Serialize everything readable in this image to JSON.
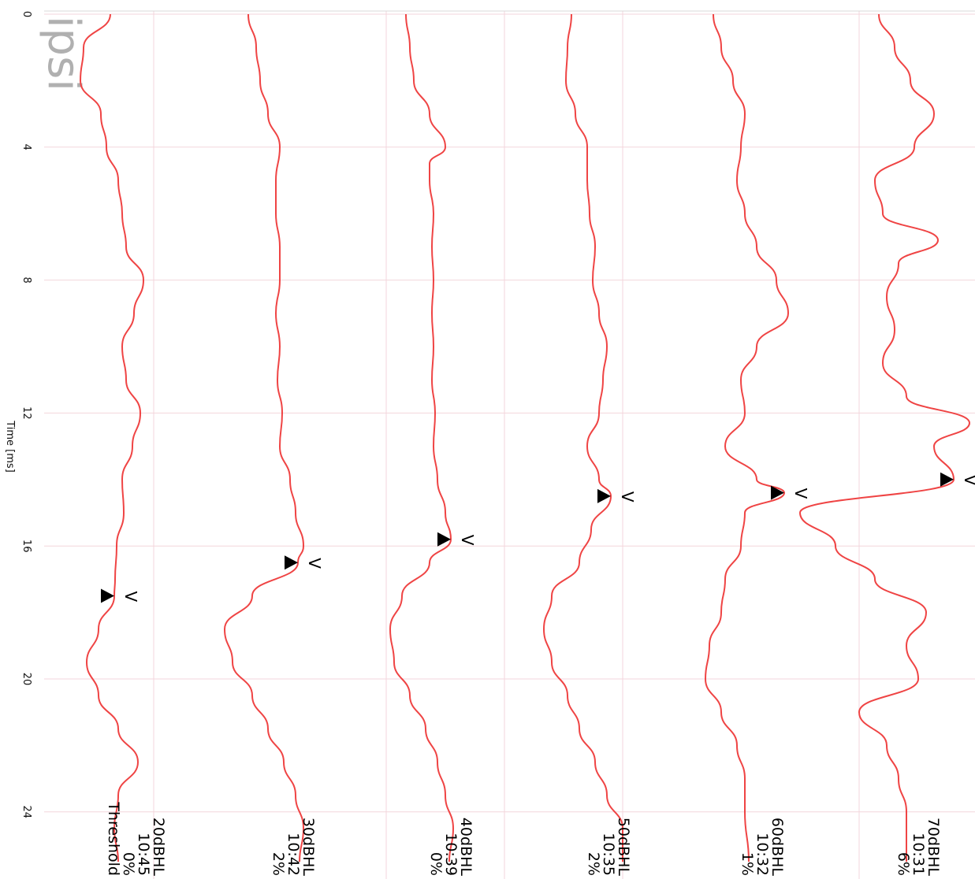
{
  "view": {
    "side_label": "ipsi",
    "axis_label": "Time [ms]",
    "ticks": [
      "0",
      "4",
      "8",
      "12",
      "16",
      "20",
      "24"
    ],
    "trace_color": "#ef4444",
    "grid_color": "#f3d6dc",
    "marker_color": "#000000"
  },
  "chart_data": {
    "type": "line",
    "title": "",
    "xlabel": "Time [ms]",
    "ylabel": "",
    "xlim": [
      0,
      25.5
    ],
    "xticks": [
      0,
      4,
      8,
      12,
      16,
      20,
      24
    ],
    "grid": true,
    "series": [
      {
        "level": "20dBHL",
        "time": "10:45",
        "percent": "0%",
        "note": "Threshold",
        "wave_v_ms": 17.5,
        "wave_v_label": "V",
        "points": [
          [
            0,
            140
          ],
          [
            1,
            106
          ],
          [
            2,
            102
          ],
          [
            3,
            128
          ],
          [
            4,
            135
          ],
          [
            5,
            150
          ],
          [
            6,
            155
          ],
          [
            7,
            160
          ],
          [
            8,
            182
          ],
          [
            9,
            170
          ],
          [
            10,
            155
          ],
          [
            11,
            160
          ],
          [
            12,
            178
          ],
          [
            13,
            168
          ],
          [
            14,
            155
          ],
          [
            15,
            157
          ],
          [
            16,
            148
          ],
          [
            17,
            146
          ],
          [
            17.5,
            145
          ],
          [
            18.5,
            125
          ],
          [
            19.5,
            110
          ],
          [
            20.5,
            125
          ],
          [
            21.5,
            150
          ],
          [
            22.5,
            175
          ],
          [
            23.5,
            150
          ],
          [
            24.5,
            145
          ],
          [
            25.5,
            150
          ]
        ]
      },
      {
        "level": "30dBHL",
        "time": "10:42",
        "percent": "2%",
        "note": "",
        "wave_v_ms": 16.5,
        "wave_v_label": "V",
        "points": [
          [
            0,
            315
          ],
          [
            1,
            325
          ],
          [
            2,
            330
          ],
          [
            3,
            340
          ],
          [
            4,
            355
          ],
          [
            5,
            350
          ],
          [
            6,
            350
          ],
          [
            7,
            355
          ],
          [
            8,
            355
          ],
          [
            9,
            350
          ],
          [
            10,
            355
          ],
          [
            11,
            352
          ],
          [
            12,
            358
          ],
          [
            13,
            355
          ],
          [
            14,
            368
          ],
          [
            15,
            375
          ],
          [
            16,
            385
          ],
          [
            16.5,
            378
          ],
          [
            17.5,
            320
          ],
          [
            18.5,
            285
          ],
          [
            19.5,
            295
          ],
          [
            20.5,
            320
          ],
          [
            21.5,
            340
          ],
          [
            22.5,
            360
          ],
          [
            23.5,
            375
          ],
          [
            24.5,
            385
          ],
          [
            25.5,
            380
          ]
        ]
      },
      {
        "level": "40dBHL",
        "time": "10:39",
        "percent": "0%",
        "note": "",
        "wave_v_ms": 15.8,
        "wave_v_label": "V",
        "points": [
          [
            0,
            515
          ],
          [
            1,
            520
          ],
          [
            2,
            525
          ],
          [
            3,
            545
          ],
          [
            4,
            565
          ],
          [
            4.5,
            545
          ],
          [
            5,
            545
          ],
          [
            6,
            550
          ],
          [
            7,
            548
          ],
          [
            8,
            550
          ],
          [
            9,
            548
          ],
          [
            10,
            550
          ],
          [
            11,
            548
          ],
          [
            12,
            552
          ],
          [
            13,
            550
          ],
          [
            14,
            555
          ],
          [
            15,
            565
          ],
          [
            15.8,
            572
          ],
          [
            16.5,
            545
          ],
          [
            17.5,
            510
          ],
          [
            18.5,
            495
          ],
          [
            19.5,
            500
          ],
          [
            20.5,
            520
          ],
          [
            21.5,
            540
          ],
          [
            22.5,
            555
          ],
          [
            23.5,
            565
          ],
          [
            24.5,
            575
          ],
          [
            25.5,
            570
          ]
        ]
      },
      {
        "level": "50dBHL",
        "time": "10:35",
        "percent": "2%",
        "note": "",
        "wave_v_ms": 14.5,
        "wave_v_label": "V",
        "points": [
          [
            0,
            725
          ],
          [
            1,
            720
          ],
          [
            2,
            718
          ],
          [
            3,
            730
          ],
          [
            4,
            745
          ],
          [
            5,
            745
          ],
          [
            6,
            748
          ],
          [
            7,
            755
          ],
          [
            8,
            752
          ],
          [
            9,
            760
          ],
          [
            10,
            770
          ],
          [
            11,
            765
          ],
          [
            12,
            760
          ],
          [
            13,
            745
          ],
          [
            14,
            760
          ],
          [
            14.5,
            775
          ],
          [
            15.5,
            750
          ],
          [
            16.5,
            735
          ],
          [
            17.5,
            700
          ],
          [
            18.5,
            690
          ],
          [
            19.5,
            700
          ],
          [
            20.5,
            720
          ],
          [
            21.5,
            735
          ],
          [
            22.5,
            755
          ],
          [
            23.5,
            770
          ],
          [
            24.5,
            790
          ],
          [
            25.5,
            790
          ]
        ]
      },
      {
        "level": "60dBHL",
        "time": "10:32",
        "percent": "1%",
        "note": "",
        "wave_v_ms": 14.4,
        "wave_v_label": "V",
        "points": [
          [
            0,
            905
          ],
          [
            1,
            915
          ],
          [
            2,
            930
          ],
          [
            3,
            945
          ],
          [
            4,
            940
          ],
          [
            5,
            935
          ],
          [
            6,
            945
          ],
          [
            7,
            960
          ],
          [
            8,
            985
          ],
          [
            9,
            1000
          ],
          [
            10,
            960
          ],
          [
            11,
            940
          ],
          [
            12,
            945
          ],
          [
            13,
            920
          ],
          [
            14,
            960
          ],
          [
            14.4,
            995
          ],
          [
            15,
            945
          ],
          [
            16,
            940
          ],
          [
            17,
            920
          ],
          [
            18,
            915
          ],
          [
            19,
            900
          ],
          [
            20,
            895
          ],
          [
            21,
            915
          ],
          [
            22,
            935
          ],
          [
            23,
            945
          ],
          [
            24,
            945
          ],
          [
            25.5,
            950
          ]
        ]
      },
      {
        "level": "70dBHL",
        "time": "10:31",
        "percent": "6%",
        "note": "",
        "wave_v_ms": 14.0,
        "wave_v_label": "V",
        "points": [
          [
            0,
            1115
          ],
          [
            1,
            1135
          ],
          [
            2,
            1155
          ],
          [
            3,
            1185
          ],
          [
            4,
            1160
          ],
          [
            5,
            1110
          ],
          [
            6,
            1120
          ],
          [
            6.8,
            1190
          ],
          [
            7.5,
            1140
          ],
          [
            8.5,
            1125
          ],
          [
            9.5,
            1135
          ],
          [
            10.5,
            1120
          ],
          [
            11.5,
            1150
          ],
          [
            12.3,
            1230
          ],
          [
            13,
            1185
          ],
          [
            14.0,
            1210
          ],
          [
            15,
            1015
          ],
          [
            16,
            1060
          ],
          [
            17,
            1110
          ],
          [
            18,
            1175
          ],
          [
            19,
            1150
          ],
          [
            20,
            1165
          ],
          [
            21,
            1090
          ],
          [
            22,
            1125
          ],
          [
            23,
            1140
          ],
          [
            24,
            1150
          ],
          [
            25.5,
            1150
          ]
        ]
      }
    ]
  }
}
